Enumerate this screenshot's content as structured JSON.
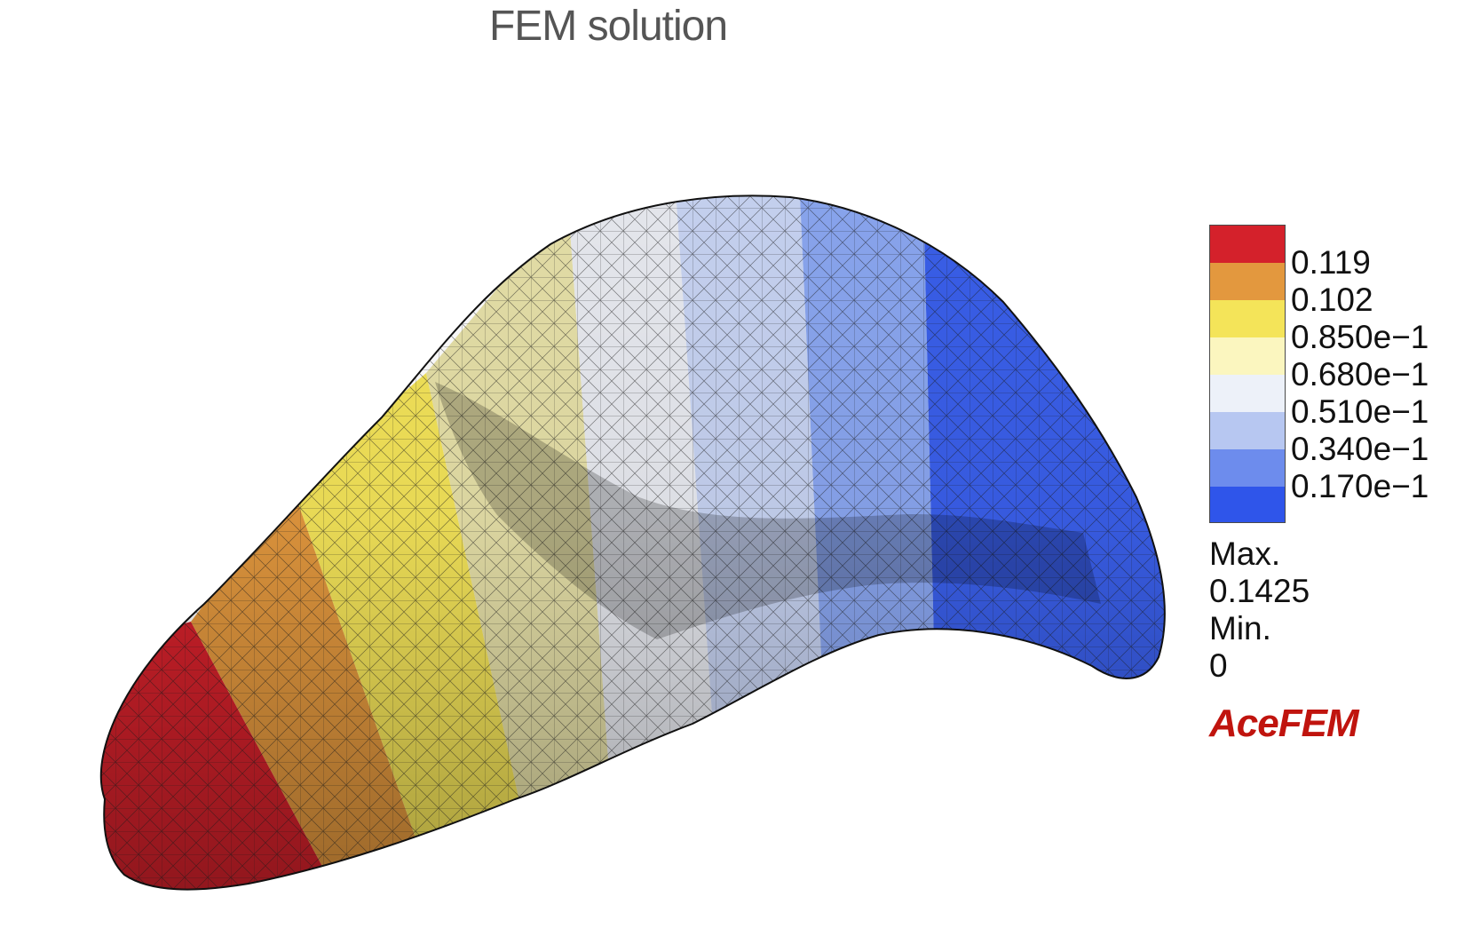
{
  "title": "FEM solution",
  "legend": {
    "labels": [
      "0.119",
      "0.102",
      "0.850e−1",
      "0.680e−1",
      "0.510e−1",
      "0.340e−1",
      "0.170e−1"
    ],
    "colors": [
      "#d4212b",
      "#e3983e",
      "#f4e459",
      "#fbf6bf",
      "#edf1f9",
      "#b7c7f1",
      "#6d8ced",
      "#2f55ea"
    ]
  },
  "stats": {
    "max_label": "Max.",
    "max_value": "0.1425",
    "min_label": "Min.",
    "min_value": "0"
  },
  "brand": {
    "text": "AceFEM",
    "color": "#c0140e"
  }
}
